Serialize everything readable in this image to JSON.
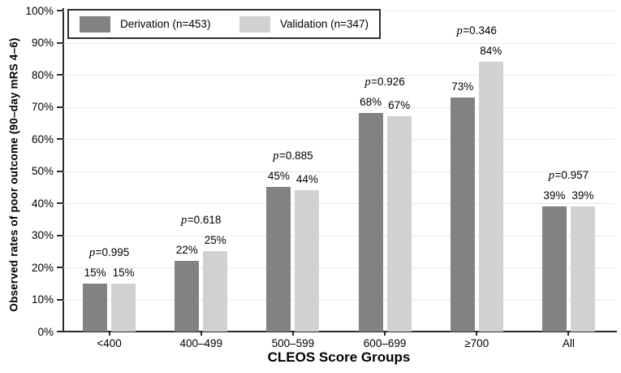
{
  "chart_data": {
    "type": "bar",
    "title": "",
    "xlabel": "CLEOS Score Groups",
    "ylabel": "Observed rates of poor outcome (90–day mRS 4–6)",
    "categories": [
      "<400",
      "400–499",
      "500–599",
      "600–699",
      "≥700",
      "All"
    ],
    "series": [
      {
        "name": "Derivation (n=453)",
        "color": "#828282",
        "values": [
          15,
          22,
          45,
          68,
          73,
          39
        ]
      },
      {
        "name": "Validation (n=347)",
        "color": "#d1d1d1",
        "values": [
          15,
          25,
          44,
          67,
          84,
          39
        ]
      }
    ],
    "p_values": [
      "0.995",
      "0.618",
      "0.885",
      "0.926",
      "0.346",
      "0.957"
    ],
    "ylim": [
      0,
      100
    ],
    "yticks": [
      "0%",
      "10%",
      "20%",
      "30%",
      "40%",
      "50%",
      "60%",
      "70%",
      "80%",
      "90%",
      "100%"
    ],
    "grid": "horizontal-light",
    "legend_position": "top-left",
    "colors": {
      "axis": "#2b2b2b",
      "gridline": "#e9e9e9",
      "background": "#ffffff",
      "text": "#000000"
    }
  }
}
